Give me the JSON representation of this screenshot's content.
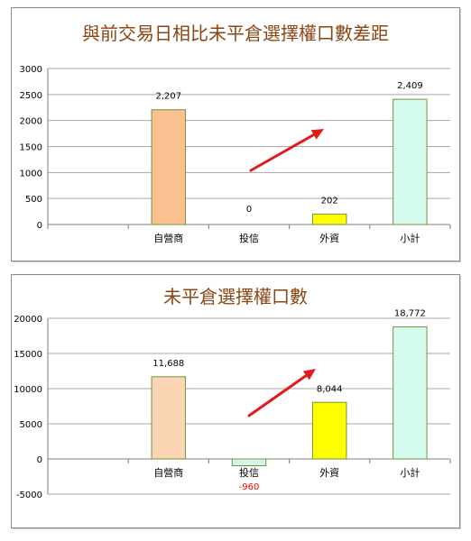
{
  "chart_data": [
    {
      "type": "bar",
      "title": "與前交易日相比未平倉選擇權口數差距",
      "categories": [
        "",
        "自營商",
        "投信",
        "外資",
        "小計"
      ],
      "values": [
        null,
        2207,
        0,
        202,
        2409
      ],
      "data_labels": [
        "",
        "2,207",
        "0",
        "202",
        "2,409"
      ],
      "colors": [
        "#ffffff",
        "#fac090",
        "#d5f5ec",
        "#ffff00",
        "#d5fcef"
      ],
      "ylim": [
        0,
        3000
      ],
      "yticks": [
        "0",
        "500",
        "1000",
        "1500",
        "2000",
        "2500",
        "3000"
      ],
      "grid": true,
      "legend": "none"
    },
    {
      "type": "bar",
      "title": "未平倉選擇權口數",
      "categories": [
        "",
        "自營商",
        "投信",
        "外資",
        "小計"
      ],
      "values": [
        null,
        11688,
        -960,
        8044,
        18772
      ],
      "data_labels": [
        "",
        "11,688",
        "-960",
        "8,044",
        "18,772"
      ],
      "colors": [
        "#ffffff",
        "#fcd5b5",
        "#d5f5ec",
        "#ffff00",
        "#d5fcef"
      ],
      "negative_label_color": "#ff0000",
      "ylim": [
        -5000,
        20000
      ],
      "yticks": [
        "-5000",
        "0",
        "5000",
        "10000",
        "15000",
        "20000"
      ],
      "grid": true,
      "legend": "none"
    }
  ]
}
